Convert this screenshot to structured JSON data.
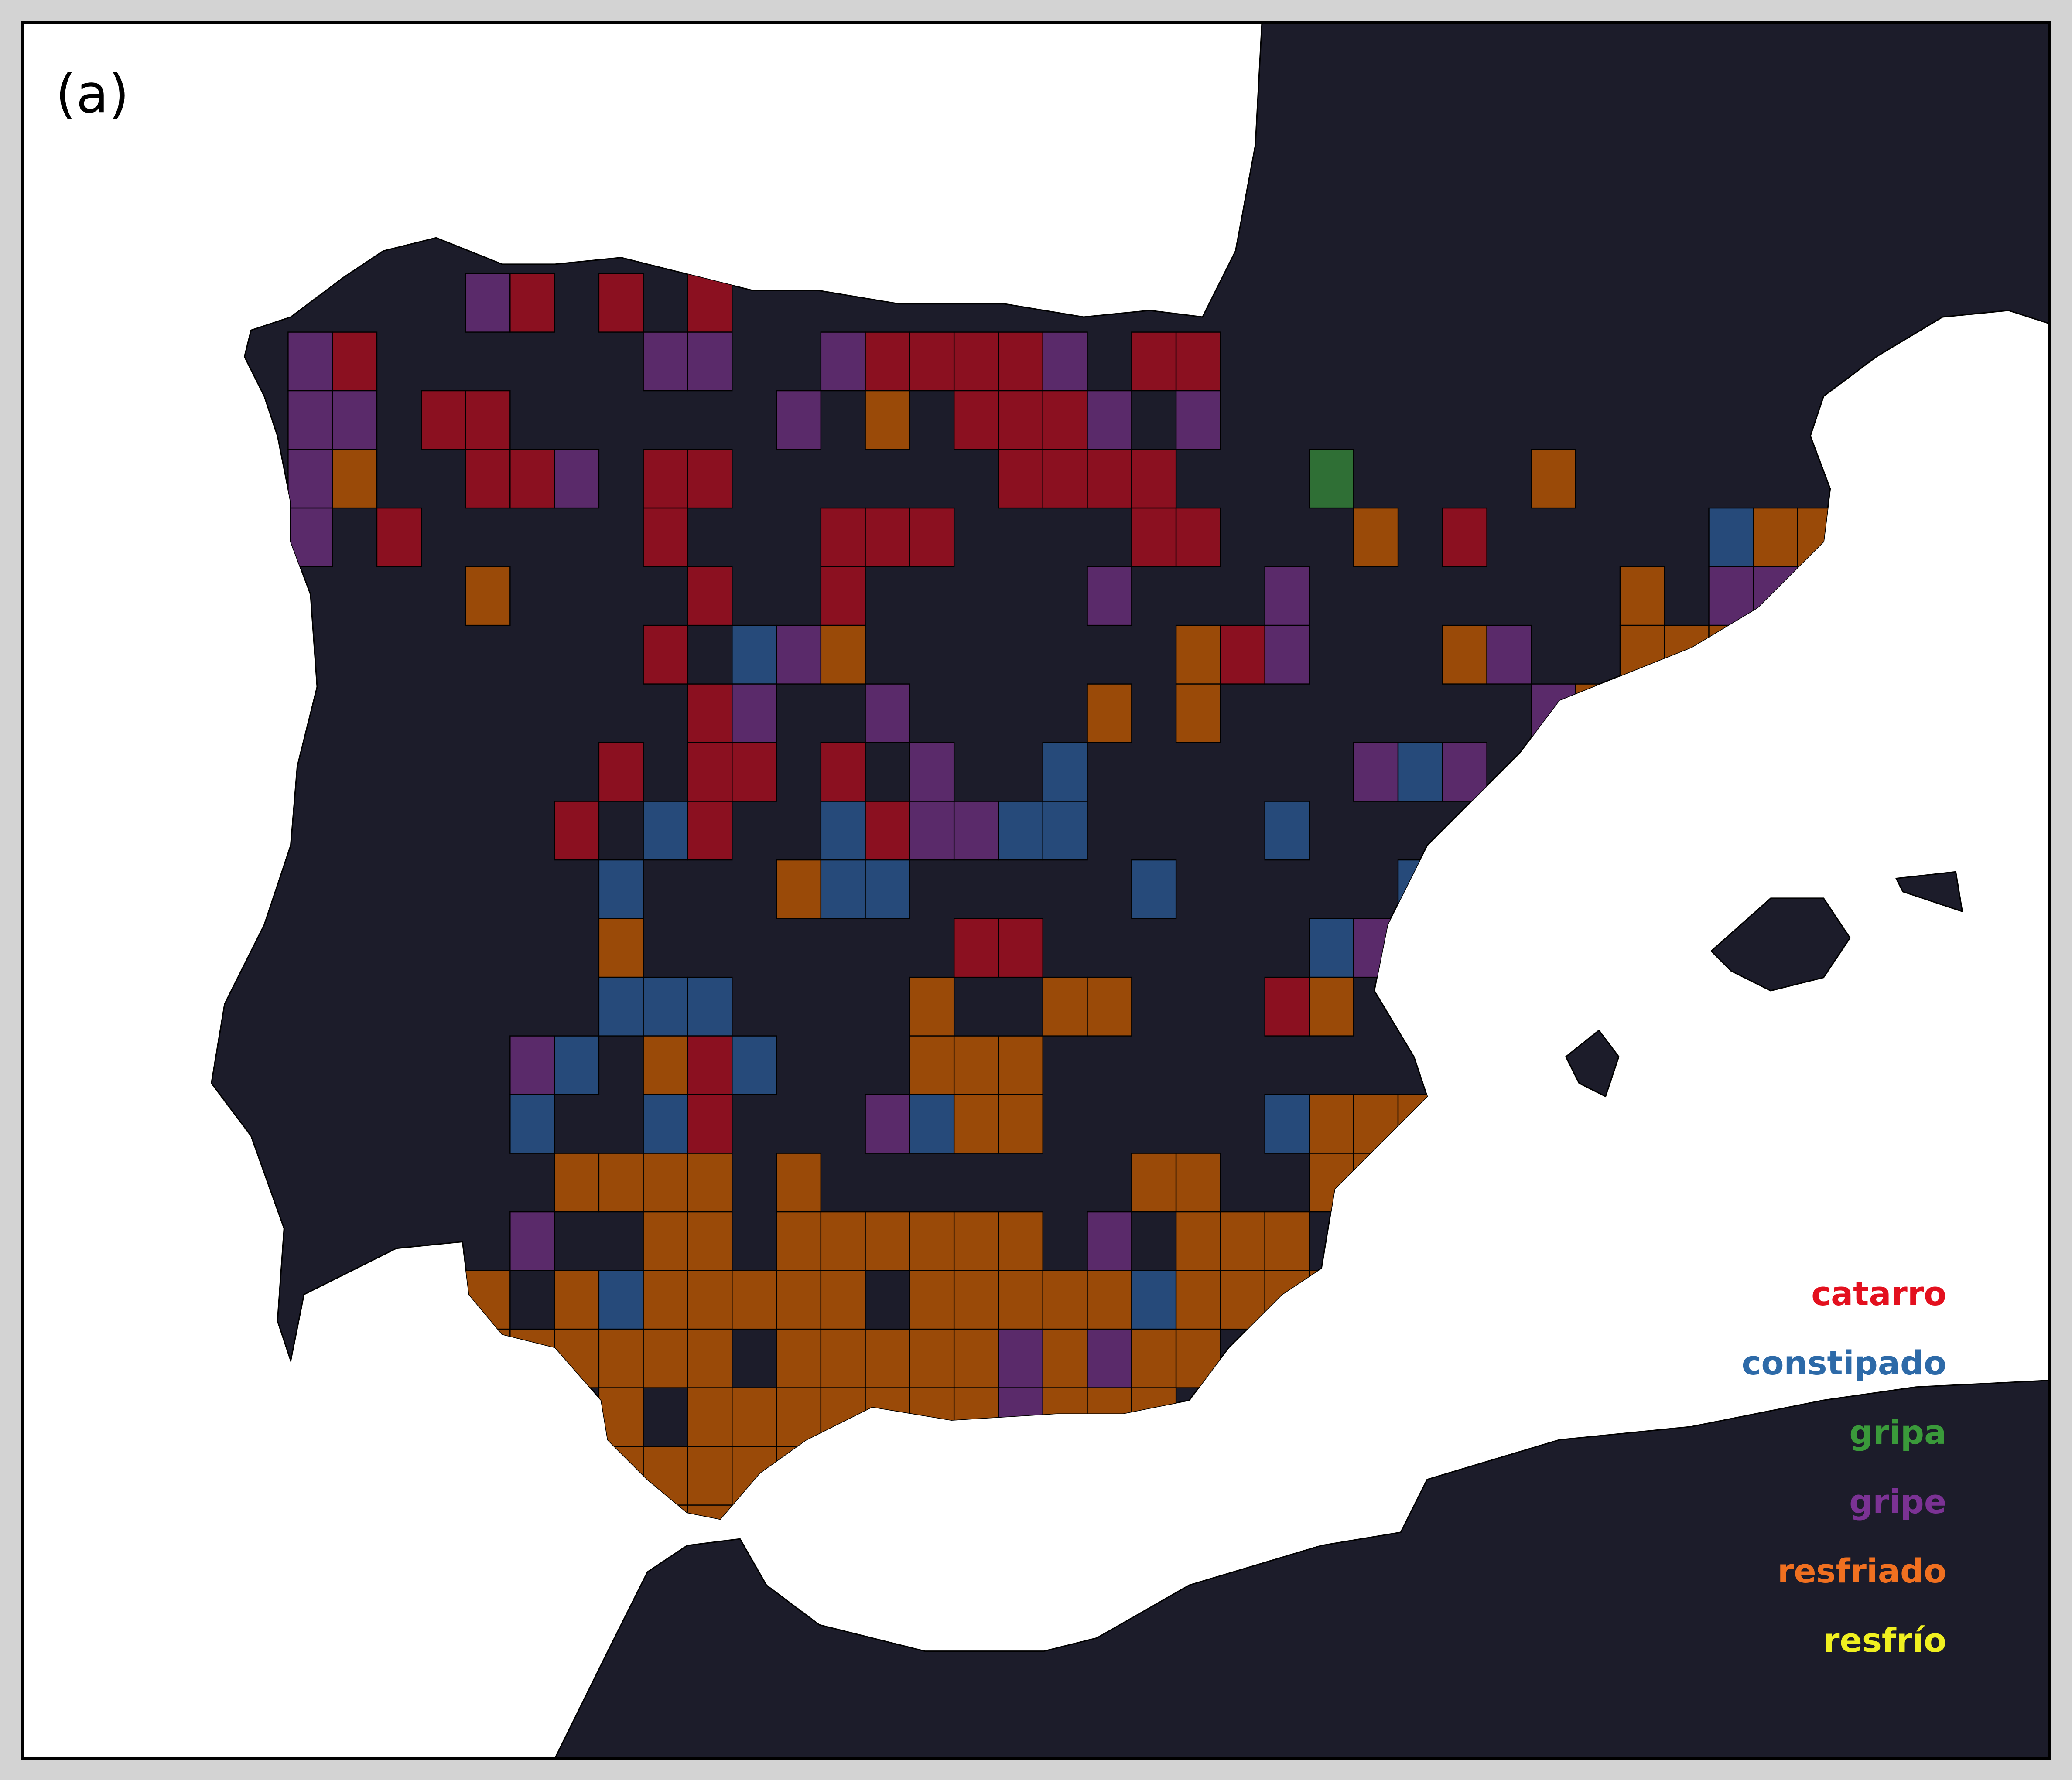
{
  "panel_label": "(a)",
  "legend": [
    {
      "label": "catarro",
      "color": "#e3101e",
      "fill": "#8b1020"
    },
    {
      "label": "constipado",
      "color": "#2d6aa8",
      "fill": "#264a7a"
    },
    {
      "label": "gripa",
      "color": "#3a9a3a",
      "fill": "#2f6f35"
    },
    {
      "label": "gripe",
      "color": "#7b3294",
      "fill": "#5a2a6a"
    },
    {
      "label": "resfriado",
      "color": "#f07020",
      "fill": "#9a4a08"
    },
    {
      "label": "resfrío",
      "color": "#f0f020",
      "fill": "#9a9a10"
    }
  ]
}
